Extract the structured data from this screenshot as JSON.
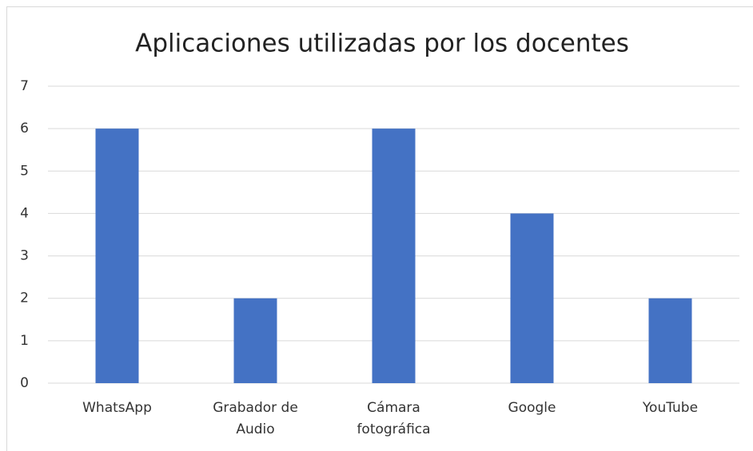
{
  "chart_data": {
    "type": "bar",
    "title": "Aplicaciones utilizadas por los docentes",
    "categories": [
      "WhatsApp",
      "Grabador de Audio",
      "Cámara fotográfica",
      "Google",
      "YouTube"
    ],
    "values": [
      6,
      2,
      6,
      4,
      2
    ],
    "color": "#4472c4",
    "ylim": [
      0,
      7
    ],
    "yticks": [
      0,
      1,
      2,
      3,
      4,
      5,
      6,
      7
    ],
    "grid": true
  }
}
